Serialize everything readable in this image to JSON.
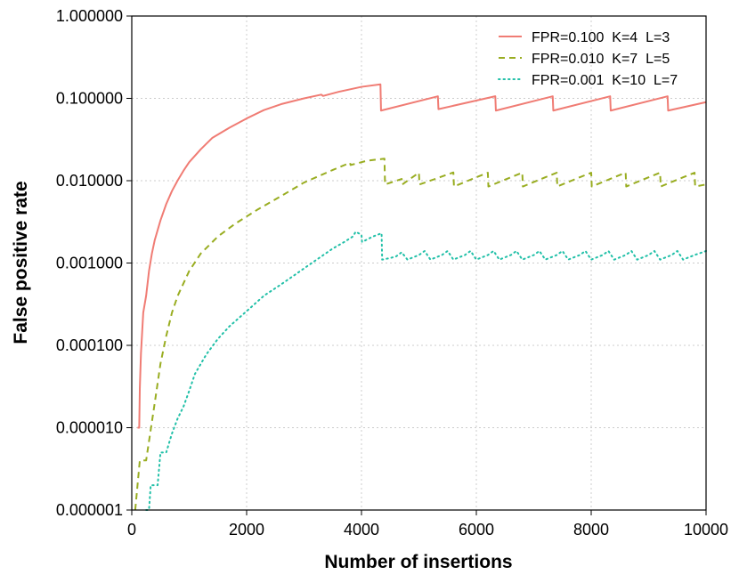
{
  "chart_data": {
    "type": "line",
    "title": "",
    "xlabel": "Number of insertions",
    "ylabel": "False positive rate",
    "xlim": [
      0,
      10000
    ],
    "ylim": [
      1e-06,
      1.0
    ],
    "y_scale": "log",
    "grid": true,
    "legend_position": "top-right",
    "x_ticks": [
      0,
      2000,
      4000,
      6000,
      8000,
      10000
    ],
    "x_tick_labels": [
      "0",
      "2000",
      "4000",
      "6000",
      "8000",
      "10000"
    ],
    "y_ticks": [
      1e-06,
      1e-05,
      0.0001,
      0.001,
      0.01,
      0.1,
      1.0
    ],
    "y_tick_labels": [
      "0.000001",
      "0.000010",
      "0.000100",
      "0.001000",
      "0.010000",
      "0.100000",
      "1.000000"
    ],
    "series": [
      {
        "name": "FPR=0.100  K=4  L=3",
        "color": "#f07c74",
        "dash": "solid",
        "points": [
          [
            100,
            1e-05
          ],
          [
            130,
            1e-05
          ],
          [
            140,
            3e-05
          ],
          [
            160,
            8e-05
          ],
          [
            200,
            0.00025
          ],
          [
            250,
            0.0004
          ],
          [
            300,
            0.0008
          ],
          [
            350,
            0.0013
          ],
          [
            400,
            0.0019
          ],
          [
            500,
            0.0033
          ],
          [
            600,
            0.0052
          ],
          [
            700,
            0.0075
          ],
          [
            800,
            0.0101
          ],
          [
            900,
            0.0132
          ],
          [
            1000,
            0.0168
          ],
          [
            1200,
            0.024
          ],
          [
            1400,
            0.033
          ],
          [
            1700,
            0.044
          ],
          [
            2000,
            0.057
          ],
          [
            2300,
            0.072
          ],
          [
            2600,
            0.085
          ],
          [
            3000,
            0.1
          ],
          [
            3300,
            0.111
          ],
          [
            3330,
            0.107
          ],
          [
            3600,
            0.12
          ],
          [
            4000,
            0.138
          ],
          [
            4330,
            0.148
          ],
          [
            4340,
            0.071
          ],
          [
            5330,
            0.106
          ],
          [
            5340,
            0.074
          ],
          [
            6330,
            0.106
          ],
          [
            6340,
            0.071
          ],
          [
            7330,
            0.106
          ],
          [
            7340,
            0.071
          ],
          [
            8330,
            0.106
          ],
          [
            8340,
            0.071
          ],
          [
            9330,
            0.106
          ],
          [
            9340,
            0.071
          ],
          [
            10000,
            0.09
          ]
        ]
      },
      {
        "name": "FPR=0.010  K=7  L=5",
        "color": "#99ad21",
        "dash": "dashed",
        "points": [
          [
            60,
            1e-06
          ],
          [
            100,
            2e-06
          ],
          [
            140,
            4e-06
          ],
          [
            250,
            4e-06
          ],
          [
            400,
            2e-05
          ],
          [
            500,
            6e-05
          ],
          [
            600,
            0.00013
          ],
          [
            700,
            0.00025
          ],
          [
            800,
            0.0004
          ],
          [
            1000,
            0.0008
          ],
          [
            1200,
            0.0013
          ],
          [
            1500,
            0.0021
          ],
          [
            1800,
            0.003
          ],
          [
            2200,
            0.0045
          ],
          [
            2600,
            0.0065
          ],
          [
            3000,
            0.0095
          ],
          [
            3500,
            0.0135
          ],
          [
            3800,
            0.0165
          ],
          [
            3810,
            0.0155
          ],
          [
            4100,
            0.0175
          ],
          [
            4400,
            0.0185
          ],
          [
            4410,
            0.009
          ],
          [
            4700,
            0.0105
          ],
          [
            4710,
            0.009
          ],
          [
            5000,
            0.0125
          ],
          [
            5010,
            0.009
          ],
          [
            5300,
            0.0106
          ],
          [
            5600,
            0.0126
          ],
          [
            5610,
            0.0085
          ],
          [
            6000,
            0.011
          ],
          [
            6200,
            0.0125
          ],
          [
            6210,
            0.0085
          ],
          [
            6600,
            0.011
          ],
          [
            6800,
            0.0125
          ],
          [
            6810,
            0.0085
          ],
          [
            7200,
            0.011
          ],
          [
            7400,
            0.0125
          ],
          [
            7410,
            0.0085
          ],
          [
            7800,
            0.011
          ],
          [
            8000,
            0.0125
          ],
          [
            8010,
            0.0085
          ],
          [
            8400,
            0.011
          ],
          [
            8600,
            0.0125
          ],
          [
            8610,
            0.0085
          ],
          [
            9000,
            0.011
          ],
          [
            9200,
            0.0125
          ],
          [
            9210,
            0.0085
          ],
          [
            9600,
            0.011
          ],
          [
            9800,
            0.0125
          ],
          [
            9810,
            0.0085
          ],
          [
            10000,
            0.009
          ]
        ]
      },
      {
        "name": "FPR=0.001  K=10  L=7",
        "color": "#22c0a8",
        "dash": "dotted",
        "points": [
          [
            250,
            1e-06
          ],
          [
            300,
            1e-06
          ],
          [
            330,
            2e-06
          ],
          [
            400,
            2e-06
          ],
          [
            450,
            2e-06
          ],
          [
            500,
            5e-06
          ],
          [
            600,
            5e-06
          ],
          [
            700,
            8.5e-06
          ],
          [
            800,
            1.3e-05
          ],
          [
            900,
            1.8e-05
          ],
          [
            1000,
            2.8e-05
          ],
          [
            1100,
            4.5e-05
          ],
          [
            1300,
            7.8e-05
          ],
          [
            1500,
            0.00012
          ],
          [
            1700,
            0.00017
          ],
          [
            2000,
            0.00026
          ],
          [
            2300,
            0.0004
          ],
          [
            2600,
            0.00055
          ],
          [
            3000,
            0.00086
          ],
          [
            3300,
            0.0012
          ],
          [
            3500,
            0.0015
          ],
          [
            3700,
            0.0018
          ],
          [
            3850,
            0.0021
          ],
          [
            3900,
            0.0024
          ],
          [
            4000,
            0.0022
          ],
          [
            4010,
            0.0018
          ],
          [
            4200,
            0.0021
          ],
          [
            4350,
            0.0023
          ],
          [
            4360,
            0.0011
          ],
          [
            4500,
            0.00115
          ],
          [
            4600,
            0.0012
          ],
          [
            4700,
            0.00135
          ],
          [
            4800,
            0.0011
          ],
          [
            5000,
            0.00125
          ],
          [
            5100,
            0.0014
          ],
          [
            5200,
            0.0011
          ],
          [
            5400,
            0.00125
          ],
          [
            5500,
            0.0014
          ],
          [
            5600,
            0.0011
          ],
          [
            5800,
            0.00125
          ],
          [
            5900,
            0.0014
          ],
          [
            6000,
            0.0011
          ],
          [
            6200,
            0.00125
          ],
          [
            6300,
            0.0014
          ],
          [
            6400,
            0.0011
          ],
          [
            6600,
            0.00125
          ],
          [
            6700,
            0.0014
          ],
          [
            6800,
            0.0011
          ],
          [
            7000,
            0.00125
          ],
          [
            7100,
            0.0014
          ],
          [
            7200,
            0.0011
          ],
          [
            7400,
            0.00125
          ],
          [
            7500,
            0.0014
          ],
          [
            7600,
            0.0011
          ],
          [
            7800,
            0.00125
          ],
          [
            7900,
            0.0014
          ],
          [
            8000,
            0.0011
          ],
          [
            8200,
            0.00125
          ],
          [
            8300,
            0.0014
          ],
          [
            8400,
            0.0011
          ],
          [
            8600,
            0.00125
          ],
          [
            8700,
            0.0014
          ],
          [
            8800,
            0.0011
          ],
          [
            9000,
            0.00125
          ],
          [
            9100,
            0.0014
          ],
          [
            9200,
            0.0011
          ],
          [
            9400,
            0.00125
          ],
          [
            9500,
            0.0014
          ],
          [
            9600,
            0.0011
          ],
          [
            9800,
            0.00125
          ],
          [
            10000,
            0.0014
          ]
        ]
      }
    ]
  }
}
